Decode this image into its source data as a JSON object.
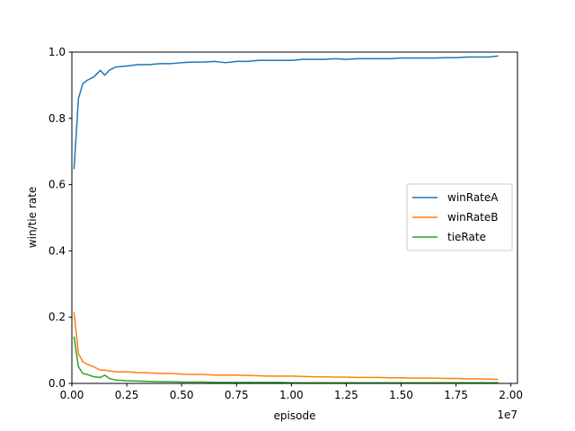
{
  "chart_data": {
    "type": "line",
    "title": "",
    "xlabel": "episode",
    "ylabel": "win/tie rate",
    "x_offset_label": "1e7",
    "xlim": [
      0,
      20300000.0
    ],
    "ylim": [
      0,
      1.0
    ],
    "x_ticks": [
      0,
      2500000,
      5000000,
      7500000,
      10000000,
      12500000,
      15000000,
      17500000,
      20000000
    ],
    "x_tick_labels": [
      "0.00",
      "0.25",
      "0.50",
      "0.75",
      "1.00",
      "1.25",
      "1.50",
      "1.75",
      "2.00"
    ],
    "y_ticks": [
      0,
      0.2,
      0.4,
      0.6,
      0.8,
      1.0
    ],
    "y_tick_labels": [
      "0.0",
      "0.2",
      "0.4",
      "0.6",
      "0.8",
      "1.0"
    ],
    "grid": false,
    "legend_position": "center-right",
    "x": [
      100000,
      300000,
      500000,
      700000,
      1000000,
      1300000,
      1500000,
      1700000,
      2000000,
      2500000,
      3000000,
      3500000,
      4000000,
      4500000,
      5000000,
      5500000,
      6000000,
      6500000,
      7000000,
      7500000,
      8000000,
      8500000,
      9000000,
      9500000,
      10000000,
      10500000,
      11000000,
      11500000,
      12000000,
      12500000,
      13000000,
      13500000,
      14000000,
      14500000,
      15000000,
      15500000,
      16000000,
      16500000,
      17000000,
      17500000,
      18000000,
      18500000,
      19000000,
      19400000
    ],
    "series": [
      {
        "name": "winRateA",
        "color": "#1f77b4",
        "values": [
          0.648,
          0.86,
          0.905,
          0.915,
          0.925,
          0.945,
          0.93,
          0.945,
          0.955,
          0.958,
          0.962,
          0.962,
          0.965,
          0.965,
          0.968,
          0.97,
          0.97,
          0.972,
          0.968,
          0.972,
          0.972,
          0.975,
          0.975,
          0.975,
          0.975,
          0.978,
          0.978,
          0.978,
          0.98,
          0.978,
          0.98,
          0.98,
          0.98,
          0.98,
          0.982,
          0.982,
          0.982,
          0.982,
          0.983,
          0.983,
          0.985,
          0.985,
          0.985,
          0.988
        ]
      },
      {
        "name": "winRateB",
        "color": "#ff7f0e",
        "values": [
          0.213,
          0.09,
          0.065,
          0.058,
          0.05,
          0.04,
          0.04,
          0.038,
          0.035,
          0.035,
          0.033,
          0.032,
          0.03,
          0.03,
          0.028,
          0.027,
          0.027,
          0.025,
          0.025,
          0.025,
          0.024,
          0.023,
          0.022,
          0.022,
          0.022,
          0.021,
          0.02,
          0.02,
          0.019,
          0.019,
          0.018,
          0.018,
          0.018,
          0.017,
          0.017,
          0.016,
          0.016,
          0.016,
          0.015,
          0.015,
          0.014,
          0.014,
          0.013,
          0.012
        ]
      },
      {
        "name": "tieRate",
        "color": "#2ca02c",
        "values": [
          0.14,
          0.05,
          0.03,
          0.027,
          0.02,
          0.018,
          0.025,
          0.015,
          0.01,
          0.008,
          0.007,
          0.006,
          0.005,
          0.005,
          0.004,
          0.004,
          0.004,
          0.003,
          0.003,
          0.003,
          0.003,
          0.003,
          0.003,
          0.003,
          0.002,
          0.002,
          0.002,
          0.002,
          0.002,
          0.002,
          0.002,
          0.002,
          0.002,
          0.002,
          0.002,
          0.002,
          0.002,
          0.002,
          0.002,
          0.002,
          0.002,
          0.002,
          0.002,
          0.002
        ]
      }
    ]
  }
}
